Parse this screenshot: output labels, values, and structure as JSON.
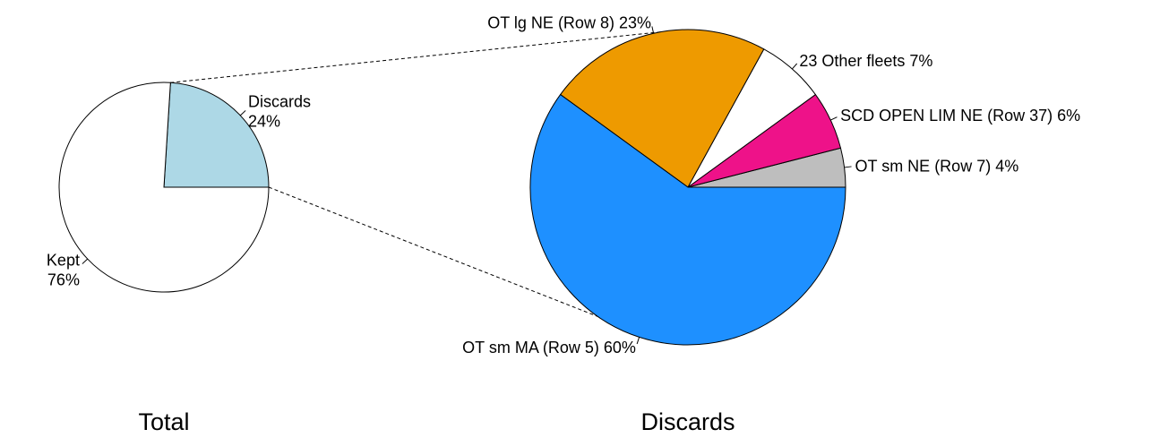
{
  "chart_data": [
    {
      "type": "pie",
      "title": "Total",
      "start_angle_deg": 0,
      "direction": "counterclockwise",
      "slices": [
        {
          "label": "Discards",
          "sublabel": "24%",
          "value": 24,
          "color": "#add8e6"
        },
        {
          "label": "Kept",
          "sublabel": "76%",
          "value": 76,
          "color": "#ffffff"
        }
      ]
    },
    {
      "type": "pie",
      "title": "Discards",
      "start_angle_deg": 0,
      "direction": "counterclockwise",
      "slices": [
        {
          "label": "OT sm NE (Row 7) 4%",
          "value": 4,
          "color": "#bebebe"
        },
        {
          "label": "SCD OPEN LIM NE (Row 37) 6%",
          "value": 6,
          "color": "#ee1289"
        },
        {
          "label": "23 Other fleets 7%",
          "value": 7,
          "color": "#ffffff"
        },
        {
          "label": "OT lg NE (Row 8) 23%",
          "value": 23,
          "color": "#ee9a00"
        },
        {
          "label": "OT sm MA (Row 5) 60%",
          "value": 60,
          "color": "#1e90ff"
        }
      ]
    }
  ]
}
